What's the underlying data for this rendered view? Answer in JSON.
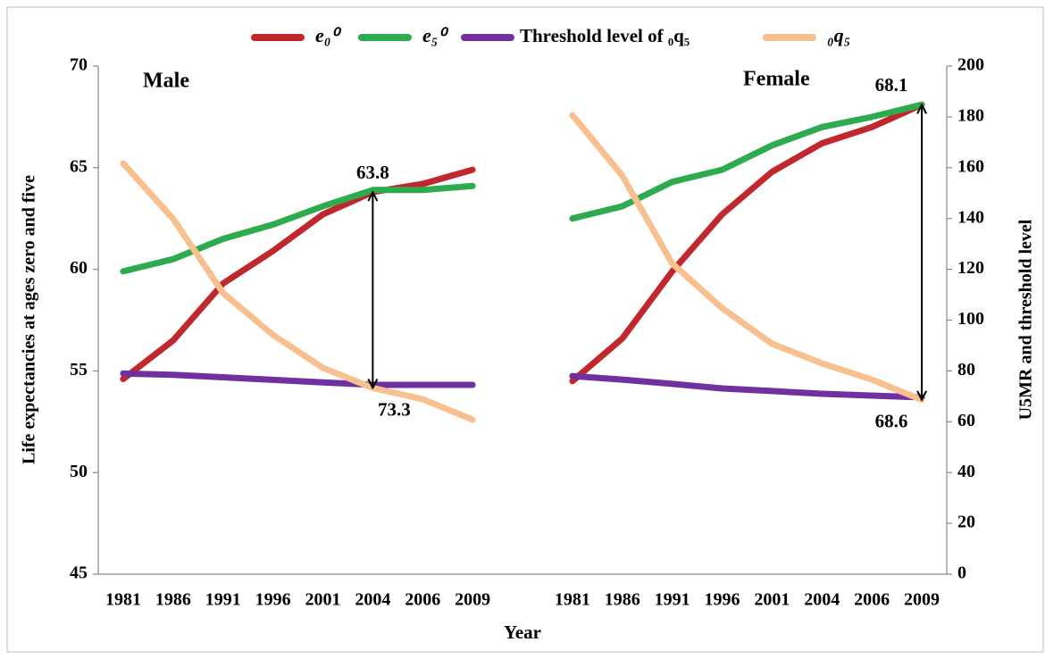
{
  "chart_data": {
    "type": "line",
    "panel_titles": [
      "Male",
      "Female"
    ],
    "ylabel": "Life expectancies at ages zero and five",
    "y2label": "U5MR and threshold level",
    "xlabel": "Year",
    "categories": [
      "1981",
      "1986",
      "1991",
      "1996",
      "2001",
      "2004",
      "2006",
      "2009",
      null,
      "1981",
      "1986",
      "1991",
      "1996",
      "2001",
      "2004",
      "2006",
      "2009"
    ],
    "ylim": [
      45,
      70
    ],
    "yticks": [
      45,
      50,
      55,
      60,
      65,
      70
    ],
    "y2lim": [
      0,
      200
    ],
    "y2ticks": [
      0,
      20,
      40,
      60,
      80,
      100,
      120,
      140,
      160,
      180,
      200
    ],
    "series": [
      {
        "name": "e₀⁰",
        "color": "#c0282d",
        "values": [
          54.6,
          56.5,
          59.3,
          60.9,
          62.7,
          63.8,
          64.2,
          64.9,
          null,
          54.5,
          56.6,
          59.9,
          62.7,
          64.8,
          66.2,
          67.0,
          68.1
        ]
      },
      {
        "name": "e₅⁰",
        "color": "#2eaa4f",
        "values": [
          59.9,
          60.5,
          61.5,
          62.2,
          63.1,
          63.9,
          63.9,
          64.1,
          null,
          62.5,
          63.1,
          64.3,
          64.9,
          66.1,
          67.0,
          67.5,
          68.1
        ]
      },
      {
        "name": "Threshold level of ₀q₅",
        "color": "#7030a0",
        "axis": "y2",
        "values": [
          79,
          78.5,
          77.5,
          76.5,
          75.5,
          74.5,
          74.5,
          74.5,
          null,
          78,
          76.6,
          74.9,
          73.1,
          72.1,
          71,
          70.3,
          69.6
        ]
      },
      {
        "name": "₀q₅",
        "color": "#f8c08f",
        "axis": "y2",
        "values": [
          161.7,
          139.9,
          110.7,
          94.2,
          81.2,
          73.3,
          68.9,
          60.8,
          null,
          180.7,
          156.8,
          122.3,
          104.7,
          90.7,
          83,
          76.6,
          68.6
        ]
      }
    ],
    "annotations": [
      "63.8",
      "73.3",
      "68.1",
      "68.6"
    ]
  }
}
